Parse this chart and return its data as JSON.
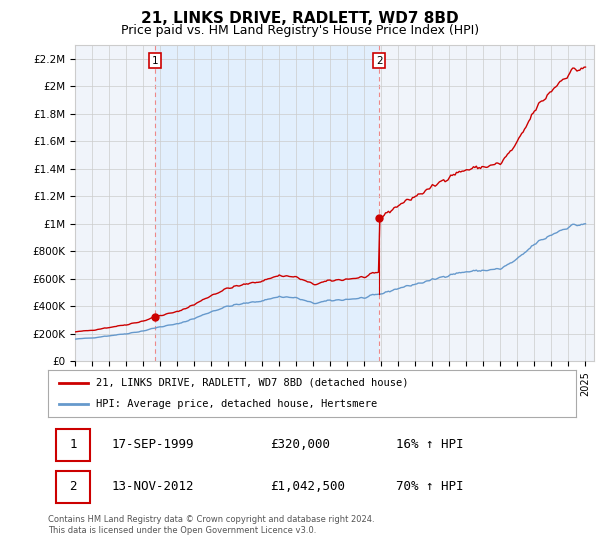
{
  "title": "21, LINKS DRIVE, RADLETT, WD7 8BD",
  "subtitle": "Price paid vs. HM Land Registry's House Price Index (HPI)",
  "title_fontsize": 11,
  "subtitle_fontsize": 9,
  "red_line_label": "21, LINKS DRIVE, RADLETT, WD7 8BD (detached house)",
  "blue_line_label": "HPI: Average price, detached house, Hertsmere",
  "sale1_date": "17-SEP-1999",
  "sale1_price": "£320,000",
  "sale1_hpi": "16% ↑ HPI",
  "sale2_date": "13-NOV-2012",
  "sale2_price": "£1,042,500",
  "sale2_hpi": "70% ↑ HPI",
  "footer": "Contains HM Land Registry data © Crown copyright and database right 2024.\nThis data is licensed under the Open Government Licence v3.0.",
  "ylim": [
    0,
    2300000
  ],
  "yticks": [
    0,
    200000,
    400000,
    600000,
    800000,
    1000000,
    1200000,
    1400000,
    1600000,
    1800000,
    2000000,
    2200000
  ],
  "ytick_labels": [
    "£0",
    "£200K",
    "£400K",
    "£600K",
    "£800K",
    "£1M",
    "£1.2M",
    "£1.4M",
    "£1.6M",
    "£1.8M",
    "£2M",
    "£2.2M"
  ],
  "sale1_year": 1999.72,
  "sale2_year": 2012.87,
  "sale1_value": 320000,
  "sale2_value": 1042500,
  "red_color": "#cc0000",
  "blue_color": "#6699cc",
  "marker_color": "#cc0000",
  "vline_color": "#ee8888",
  "shade_color": "#ddeeff",
  "grid_color": "#cccccc",
  "background_color": "#ffffff",
  "plot_bg_color": "#f0f4fa"
}
